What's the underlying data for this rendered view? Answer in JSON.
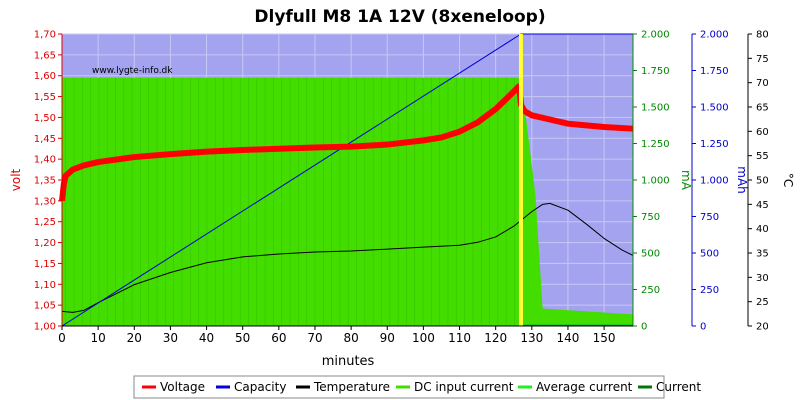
{
  "chart_data": {
    "type": "line",
    "title": "Dlyfull M8 1A 12V (8xeneloop)",
    "watermark": "www.lygte-info.dk",
    "xlabel": "minutes",
    "xlim": [
      0,
      158
    ],
    "x_ticks": [
      0,
      10,
      20,
      30,
      40,
      50,
      60,
      70,
      80,
      90,
      100,
      110,
      120,
      130,
      140,
      150
    ],
    "axes": {
      "volt": {
        "label": "volt",
        "color": "#dd0000",
        "lim": [
          1.0,
          1.7
        ],
        "ticks": [
          "1,00",
          "1,05",
          "1,10",
          "1,15",
          "1,20",
          "1,25",
          "1,30",
          "1,35",
          "1,40",
          "1,45",
          "1,50",
          "1,55",
          "1,60",
          "1,65",
          "1,70"
        ]
      },
      "mA": {
        "label": "mA",
        "color": "#008800",
        "lim": [
          0,
          2000
        ],
        "ticks": [
          "0",
          "250",
          "500",
          "750",
          "1.000",
          "1.250",
          "1.500",
          "1.750",
          "2.000"
        ]
      },
      "mAh": {
        "label": "mAh",
        "color": "#0000cc",
        "lim": [
          0,
          2000
        ],
        "ticks": [
          "0",
          "250",
          "500",
          "750",
          "1.000",
          "1.250",
          "1.500",
          "1.750",
          "2.000"
        ]
      },
      "degC": {
        "label": "°C",
        "color": "#000000",
        "lim": [
          20,
          80
        ],
        "ticks": [
          "20",
          "25",
          "30",
          "35",
          "40",
          "45",
          "50",
          "55",
          "60",
          "65",
          "70",
          "75",
          "80"
        ]
      }
    },
    "end_marker_minutes": 127,
    "series": [
      {
        "name": "Voltage",
        "color": "#ff0000",
        "axis": "volt",
        "width": 6,
        "x": [
          0,
          0.5,
          1,
          3,
          6,
          10,
          20,
          30,
          40,
          50,
          60,
          70,
          80,
          90,
          100,
          105,
          110,
          115,
          120,
          123,
          125,
          126.5,
          127,
          128,
          130,
          135,
          140,
          150,
          158
        ],
        "y": [
          1.3,
          1.34,
          1.36,
          1.375,
          1.385,
          1.393,
          1.405,
          1.412,
          1.418,
          1.422,
          1.425,
          1.428,
          1.43,
          1.435,
          1.445,
          1.452,
          1.466,
          1.488,
          1.52,
          1.545,
          1.562,
          1.575,
          1.53,
          1.515,
          1.505,
          1.495,
          1.485,
          1.477,
          1.473
        ]
      },
      {
        "name": "Capacity",
        "color": "#0000dd",
        "axis": "mAh",
        "width": 1,
        "x": [
          0,
          127,
          158
        ],
        "y": [
          0,
          2000,
          2000
        ]
      },
      {
        "name": "Temperature",
        "color": "#000000",
        "axis": "degC",
        "width": 1,
        "x": [
          0,
          3,
          6,
          10,
          20,
          30,
          40,
          50,
          60,
          70,
          80,
          90,
          100,
          110,
          115,
          120,
          125,
          130,
          133,
          135,
          140,
          145,
          150,
          155,
          158
        ],
        "y": [
          23,
          22.8,
          23.2,
          24.8,
          28.5,
          31,
          33,
          34.2,
          34.8,
          35.2,
          35.4,
          35.8,
          36.2,
          36.6,
          37.2,
          38.3,
          40.5,
          43.5,
          45.0,
          45.2,
          43.8,
          41.0,
          38.0,
          35.6,
          34.5
        ]
      },
      {
        "name": "DC input current",
        "color": "#44dd00",
        "axis": "mA",
        "width": 1,
        "x": [
          0,
          127,
          131,
          133,
          158
        ],
        "y": [
          1700,
          1700,
          900,
          120,
          80
        ]
      },
      {
        "name": "Average current",
        "color": "#22ee22",
        "axis": "mA",
        "width": 1,
        "x": [
          127,
          158
        ],
        "y": [
          10,
          10
        ]
      },
      {
        "name": "Current",
        "color": "#007700",
        "axis": "mA",
        "width": 1,
        "x": [
          127,
          158
        ],
        "y": [
          5,
          5
        ]
      }
    ],
    "legend_placement": "bottom"
  }
}
